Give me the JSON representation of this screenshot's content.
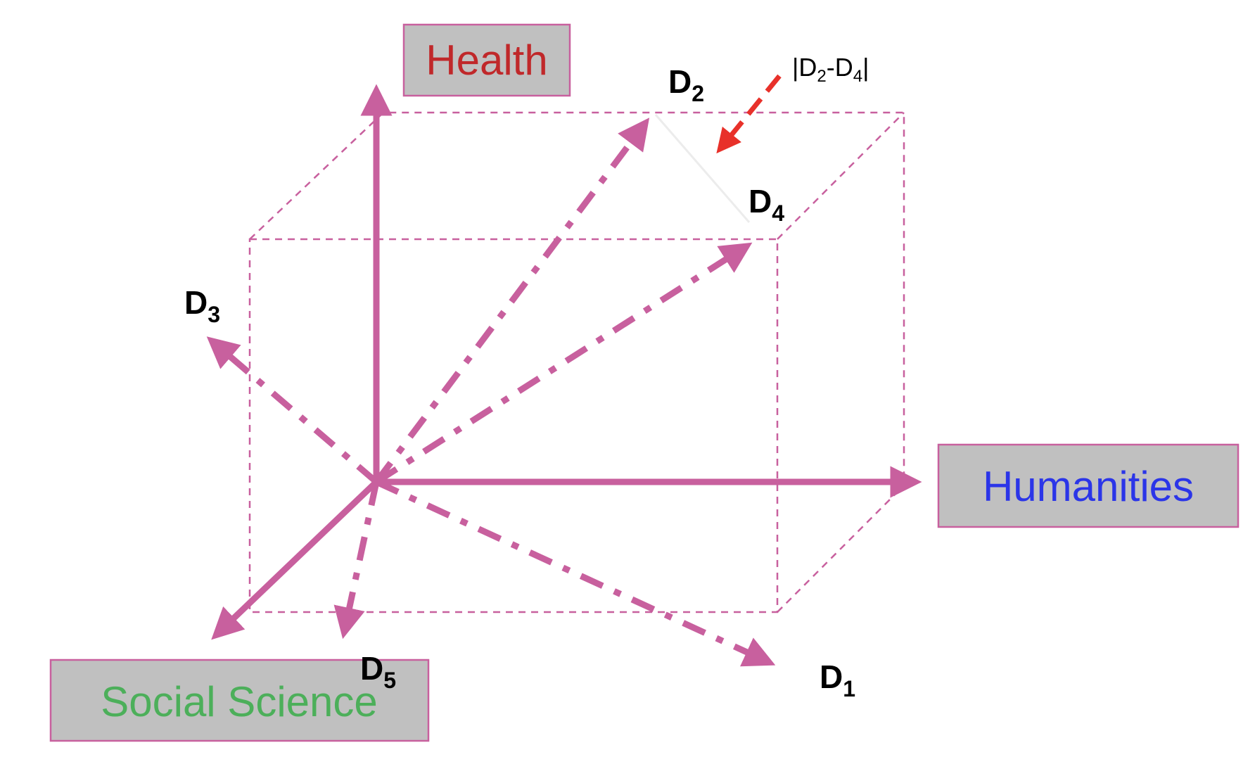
{
  "colors": {
    "structure": "#c8609e",
    "diff_arrow": "#e8312a",
    "health_text": "#c0282a",
    "humanities_text": "#2b35e8",
    "social_science_text": "#4caf5a",
    "label_box_fill": "#c0c0c0"
  },
  "axes": {
    "health": "Health",
    "humanities": "Humanities",
    "social_science": "Social Science"
  },
  "vectors": {
    "d1": {
      "letter": "D",
      "sub": "1"
    },
    "d2": {
      "letter": "D",
      "sub": "2"
    },
    "d3": {
      "letter": "D",
      "sub": "3"
    },
    "d4": {
      "letter": "D",
      "sub": "4"
    },
    "d5": {
      "letter": "D",
      "sub": "5"
    }
  },
  "difference": {
    "open": "|D",
    "sub_a": "2",
    "mid": "-D",
    "sub_b": "4",
    "close": "|"
  }
}
